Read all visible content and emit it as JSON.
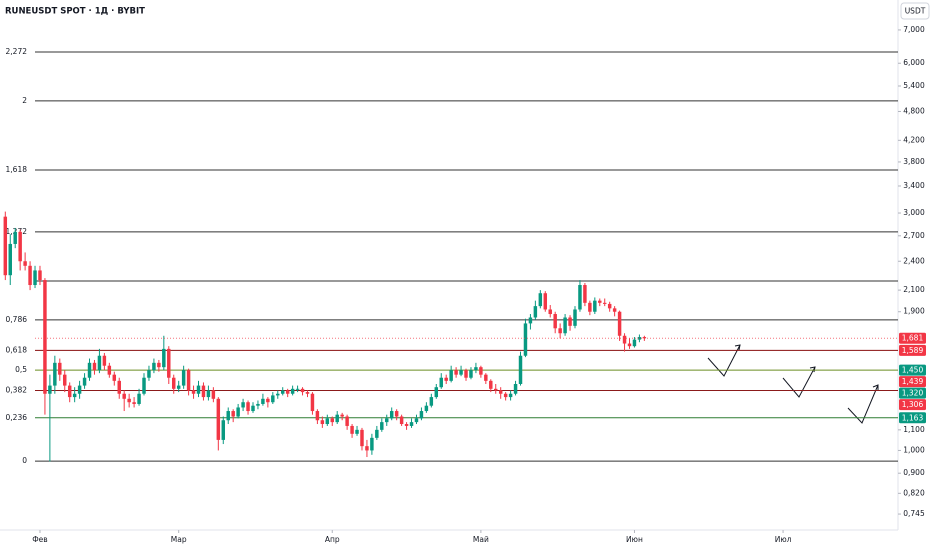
{
  "chart_data": {
    "type": "candlestick",
    "title": "RUNEUSDT SPOT · 1Д · BYBIT",
    "currency": "USDT",
    "log": true,
    "up_color": "#089981",
    "down_color": "#f23645",
    "ylim": [
      0.692,
      8.04
    ],
    "yticks": [
      {
        "value": 7,
        "label": "7,000"
      },
      {
        "value": 6,
        "label": "6,000"
      },
      {
        "value": 5.4,
        "label": "5,400"
      },
      {
        "value": 4.8,
        "label": "4,800"
      },
      {
        "value": 4.2,
        "label": "4,200"
      },
      {
        "value": 3.8,
        "label": "3,800"
      },
      {
        "value": 3.4,
        "label": "3,400"
      },
      {
        "value": 3,
        "label": "3,000"
      },
      {
        "value": 2.7,
        "label": "2,700"
      },
      {
        "value": 2.4,
        "label": "2,400"
      },
      {
        "value": 2.1,
        "label": "2,100"
      },
      {
        "value": 1.9,
        "label": "1,900"
      },
      {
        "value": 1.1,
        "label": "1,100"
      },
      {
        "value": 1,
        "label": "1,000"
      },
      {
        "value": 0.9,
        "label": "0,900"
      },
      {
        "value": 0.82,
        "label": "0,820"
      },
      {
        "value": 0.745,
        "label": "0,745"
      }
    ],
    "xlim": [
      -1.07,
      180.2
    ],
    "xticks": [
      {
        "value": 7,
        "label": "Фев"
      },
      {
        "value": 35,
        "label": "Мар"
      },
      {
        "value": 66,
        "label": "Апр"
      },
      {
        "value": 96,
        "label": "Май"
      },
      {
        "value": 127,
        "label": "Июн"
      },
      {
        "value": 157,
        "label": "Июл"
      }
    ],
    "levels": [
      {
        "label": "2,272",
        "price": 6.32,
        "color": "#333333"
      },
      {
        "label": "2",
        "price": 5.04,
        "color": "#333333"
      },
      {
        "label": "1,618",
        "price": 3.66,
        "color": "#333333"
      },
      {
        "label": "1,272",
        "price": 2.75,
        "color": "#333333"
      },
      {
        "label": null,
        "price": 2.19,
        "color": "#333333"
      },
      {
        "label": "0,786",
        "price": 1.83,
        "color": "#333333"
      },
      {
        "label": "0,618",
        "price": 1.589,
        "color": "#880e0e"
      },
      {
        "label": "0,5",
        "price": 1.45,
        "color": "#6b8e23"
      },
      {
        "label": "0,382",
        "price": 1.32,
        "color": "#8b1a1a"
      },
      {
        "label": "0,236",
        "price": 1.163,
        "color": "#2e7d32"
      },
      {
        "label": "0",
        "price": 0.952,
        "color": "#333333"
      }
    ],
    "badges": [
      {
        "value": 1.681,
        "label": "1,681",
        "color": "#f23645",
        "line": "dotted"
      },
      {
        "value": 1.589,
        "label": "1,589",
        "color": "#f23645"
      },
      {
        "value": 1.45,
        "label": "1,450",
        "color": "#089981"
      },
      {
        "value": 1.439,
        "label": "1,439",
        "color": "#f23645"
      },
      {
        "value": 1.32,
        "label": "1,320",
        "color": "#089981"
      },
      {
        "value": 1.306,
        "label": "1,306",
        "color": "#f23645"
      },
      {
        "value": 1.163,
        "label": "1,163",
        "color": "#089981"
      }
    ],
    "candles": [
      [
        2.95,
        3.02,
        2.2,
        2.25
      ],
      [
        2.25,
        2.72,
        2.15,
        2.6
      ],
      [
        2.6,
        2.8,
        2.55,
        2.75
      ],
      [
        2.75,
        2.78,
        2.3,
        2.4
      ],
      [
        2.4,
        2.5,
        2.3,
        2.35
      ],
      [
        2.35,
        2.4,
        2.1,
        2.15
      ],
      [
        2.15,
        2.35,
        2.12,
        2.3
      ],
      [
        2.3,
        2.35,
        2.15,
        2.2
      ],
      [
        2.2,
        2.22,
        1.18,
        1.3
      ],
      [
        1.3,
        1.42,
        0.95,
        1.35
      ],
      [
        1.35,
        1.55,
        1.3,
        1.5
      ],
      [
        1.5,
        1.53,
        1.38,
        1.42
      ],
      [
        1.42,
        1.45,
        1.31,
        1.35
      ],
      [
        1.35,
        1.37,
        1.25,
        1.28
      ],
      [
        1.28,
        1.34,
        1.25,
        1.3
      ],
      [
        1.3,
        1.38,
        1.27,
        1.35
      ],
      [
        1.35,
        1.43,
        1.33,
        1.4
      ],
      [
        1.4,
        1.53,
        1.38,
        1.5
      ],
      [
        1.5,
        1.52,
        1.42,
        1.45
      ],
      [
        1.45,
        1.6,
        1.43,
        1.55
      ],
      [
        1.55,
        1.57,
        1.45,
        1.48
      ],
      [
        1.48,
        1.5,
        1.4,
        1.42
      ],
      [
        1.42,
        1.44,
        1.35,
        1.38
      ],
      [
        1.38,
        1.4,
        1.27,
        1.3
      ],
      [
        1.3,
        1.32,
        1.2,
        1.27
      ],
      [
        1.27,
        1.3,
        1.22,
        1.25
      ],
      [
        1.25,
        1.28,
        1.22,
        1.24
      ],
      [
        1.24,
        1.33,
        1.23,
        1.3
      ],
      [
        1.3,
        1.43,
        1.29,
        1.4
      ],
      [
        1.4,
        1.48,
        1.38,
        1.45
      ],
      [
        1.45,
        1.53,
        1.43,
        1.5
      ],
      [
        1.5,
        1.52,
        1.44,
        1.47
      ],
      [
        1.47,
        1.7,
        1.45,
        1.6
      ],
      [
        1.6,
        1.62,
        1.36,
        1.4
      ],
      [
        1.4,
        1.42,
        1.3,
        1.33
      ],
      [
        1.33,
        1.38,
        1.31,
        1.35
      ],
      [
        1.35,
        1.48,
        1.33,
        1.45
      ],
      [
        1.45,
        1.46,
        1.29,
        1.32
      ],
      [
        1.32,
        1.35,
        1.27,
        1.3
      ],
      [
        1.3,
        1.38,
        1.28,
        1.35
      ],
      [
        1.35,
        1.37,
        1.26,
        1.28
      ],
      [
        1.28,
        1.35,
        1.26,
        1.32
      ],
      [
        1.32,
        1.34,
        1.25,
        1.27
      ],
      [
        1.27,
        1.28,
        1.0,
        1.05
      ],
      [
        1.05,
        1.17,
        1.03,
        1.15
      ],
      [
        1.15,
        1.22,
        1.13,
        1.2
      ],
      [
        1.2,
        1.21,
        1.14,
        1.17
      ],
      [
        1.17,
        1.24,
        1.16,
        1.22
      ],
      [
        1.22,
        1.27,
        1.2,
        1.25
      ],
      [
        1.25,
        1.26,
        1.18,
        1.2
      ],
      [
        1.2,
        1.25,
        1.19,
        1.23
      ],
      [
        1.23,
        1.26,
        1.21,
        1.24
      ],
      [
        1.24,
        1.3,
        1.23,
        1.27
      ],
      [
        1.27,
        1.28,
        1.22,
        1.25
      ],
      [
        1.25,
        1.31,
        1.24,
        1.29
      ],
      [
        1.29,
        1.32,
        1.27,
        1.3
      ],
      [
        1.3,
        1.34,
        1.29,
        1.32
      ],
      [
        1.32,
        1.33,
        1.28,
        1.3
      ],
      [
        1.3,
        1.35,
        1.29,
        1.33
      ],
      [
        1.33,
        1.35,
        1.31,
        1.33
      ],
      [
        1.33,
        1.34,
        1.29,
        1.31
      ],
      [
        1.31,
        1.32,
        1.28,
        1.3
      ],
      [
        1.3,
        1.31,
        1.18,
        1.2
      ],
      [
        1.2,
        1.21,
        1.13,
        1.15
      ],
      [
        1.15,
        1.17,
        1.11,
        1.13
      ],
      [
        1.13,
        1.18,
        1.12,
        1.16
      ],
      [
        1.16,
        1.17,
        1.12,
        1.14
      ],
      [
        1.14,
        1.2,
        1.13,
        1.18
      ],
      [
        1.18,
        1.19,
        1.15,
        1.17
      ],
      [
        1.17,
        1.18,
        1.1,
        1.12
      ],
      [
        1.12,
        1.13,
        1.06,
        1.08
      ],
      [
        1.08,
        1.12,
        1.07,
        1.1
      ],
      [
        1.1,
        1.11,
        1.0,
        1.02
      ],
      [
        1.02,
        1.05,
        0.97,
        1.0
      ],
      [
        1.0,
        1.08,
        0.98,
        1.06
      ],
      [
        1.06,
        1.12,
        1.05,
        1.1
      ],
      [
        1.1,
        1.16,
        1.09,
        1.14
      ],
      [
        1.14,
        1.18,
        1.12,
        1.16
      ],
      [
        1.16,
        1.22,
        1.15,
        1.2
      ],
      [
        1.2,
        1.21,
        1.15,
        1.17
      ],
      [
        1.17,
        1.18,
        1.12,
        1.13
      ],
      [
        1.13,
        1.14,
        1.1,
        1.12
      ],
      [
        1.12,
        1.16,
        1.11,
        1.14
      ],
      [
        1.14,
        1.18,
        1.13,
        1.16
      ],
      [
        1.16,
        1.22,
        1.15,
        1.2
      ],
      [
        1.2,
        1.25,
        1.19,
        1.23
      ],
      [
        1.23,
        1.3,
        1.22,
        1.28
      ],
      [
        1.28,
        1.36,
        1.27,
        1.34
      ],
      [
        1.34,
        1.43,
        1.33,
        1.4
      ],
      [
        1.4,
        1.42,
        1.36,
        1.38
      ],
      [
        1.38,
        1.48,
        1.37,
        1.45
      ],
      [
        1.45,
        1.47,
        1.4,
        1.42
      ],
      [
        1.42,
        1.48,
        1.41,
        1.45
      ],
      [
        1.45,
        1.46,
        1.38,
        1.4
      ],
      [
        1.4,
        1.47,
        1.39,
        1.45
      ],
      [
        1.45,
        1.5,
        1.43,
        1.47
      ],
      [
        1.47,
        1.48,
        1.4,
        1.42
      ],
      [
        1.42,
        1.43,
        1.36,
        1.38
      ],
      [
        1.38,
        1.39,
        1.31,
        1.33
      ],
      [
        1.33,
        1.36,
        1.3,
        1.32
      ],
      [
        1.32,
        1.34,
        1.27,
        1.3
      ],
      [
        1.3,
        1.31,
        1.26,
        1.28
      ],
      [
        1.28,
        1.32,
        1.26,
        1.3
      ],
      [
        1.3,
        1.38,
        1.29,
        1.36
      ],
      [
        1.36,
        1.58,
        1.35,
        1.55
      ],
      [
        1.55,
        1.84,
        1.54,
        1.8
      ],
      [
        1.8,
        1.88,
        1.75,
        1.85
      ],
      [
        1.85,
        2.0,
        1.83,
        1.95
      ],
      [
        1.95,
        2.1,
        1.93,
        2.07
      ],
      [
        2.07,
        2.09,
        1.9,
        1.92
      ],
      [
        1.92,
        1.96,
        1.85,
        1.88
      ],
      [
        1.88,
        1.9,
        1.72,
        1.76
      ],
      [
        1.76,
        1.8,
        1.68,
        1.72
      ],
      [
        1.72,
        1.88,
        1.7,
        1.85
      ],
      [
        1.85,
        1.87,
        1.74,
        1.78
      ],
      [
        1.78,
        1.95,
        1.76,
        1.92
      ],
      [
        1.92,
        2.2,
        1.9,
        2.15
      ],
      [
        2.15,
        2.17,
        1.95,
        1.98
      ],
      [
        1.98,
        2.0,
        1.87,
        1.9
      ],
      [
        1.9,
        2.03,
        1.88,
        2.0
      ],
      [
        2.0,
        2.02,
        1.95,
        1.98
      ],
      [
        1.98,
        2.02,
        1.95,
        1.97
      ],
      [
        1.97,
        1.99,
        1.9,
        1.93
      ],
      [
        1.93,
        1.95,
        1.86,
        1.9
      ],
      [
        1.9,
        1.91,
        1.66,
        1.7
      ],
      [
        1.7,
        1.72,
        1.58,
        1.64
      ],
      [
        1.64,
        1.68,
        1.6,
        1.62
      ],
      [
        1.62,
        1.69,
        1.61,
        1.67
      ],
      [
        1.67,
        1.71,
        1.65,
        1.69
      ],
      [
        1.69,
        1.7,
        1.66,
        1.68
      ]
    ]
  }
}
